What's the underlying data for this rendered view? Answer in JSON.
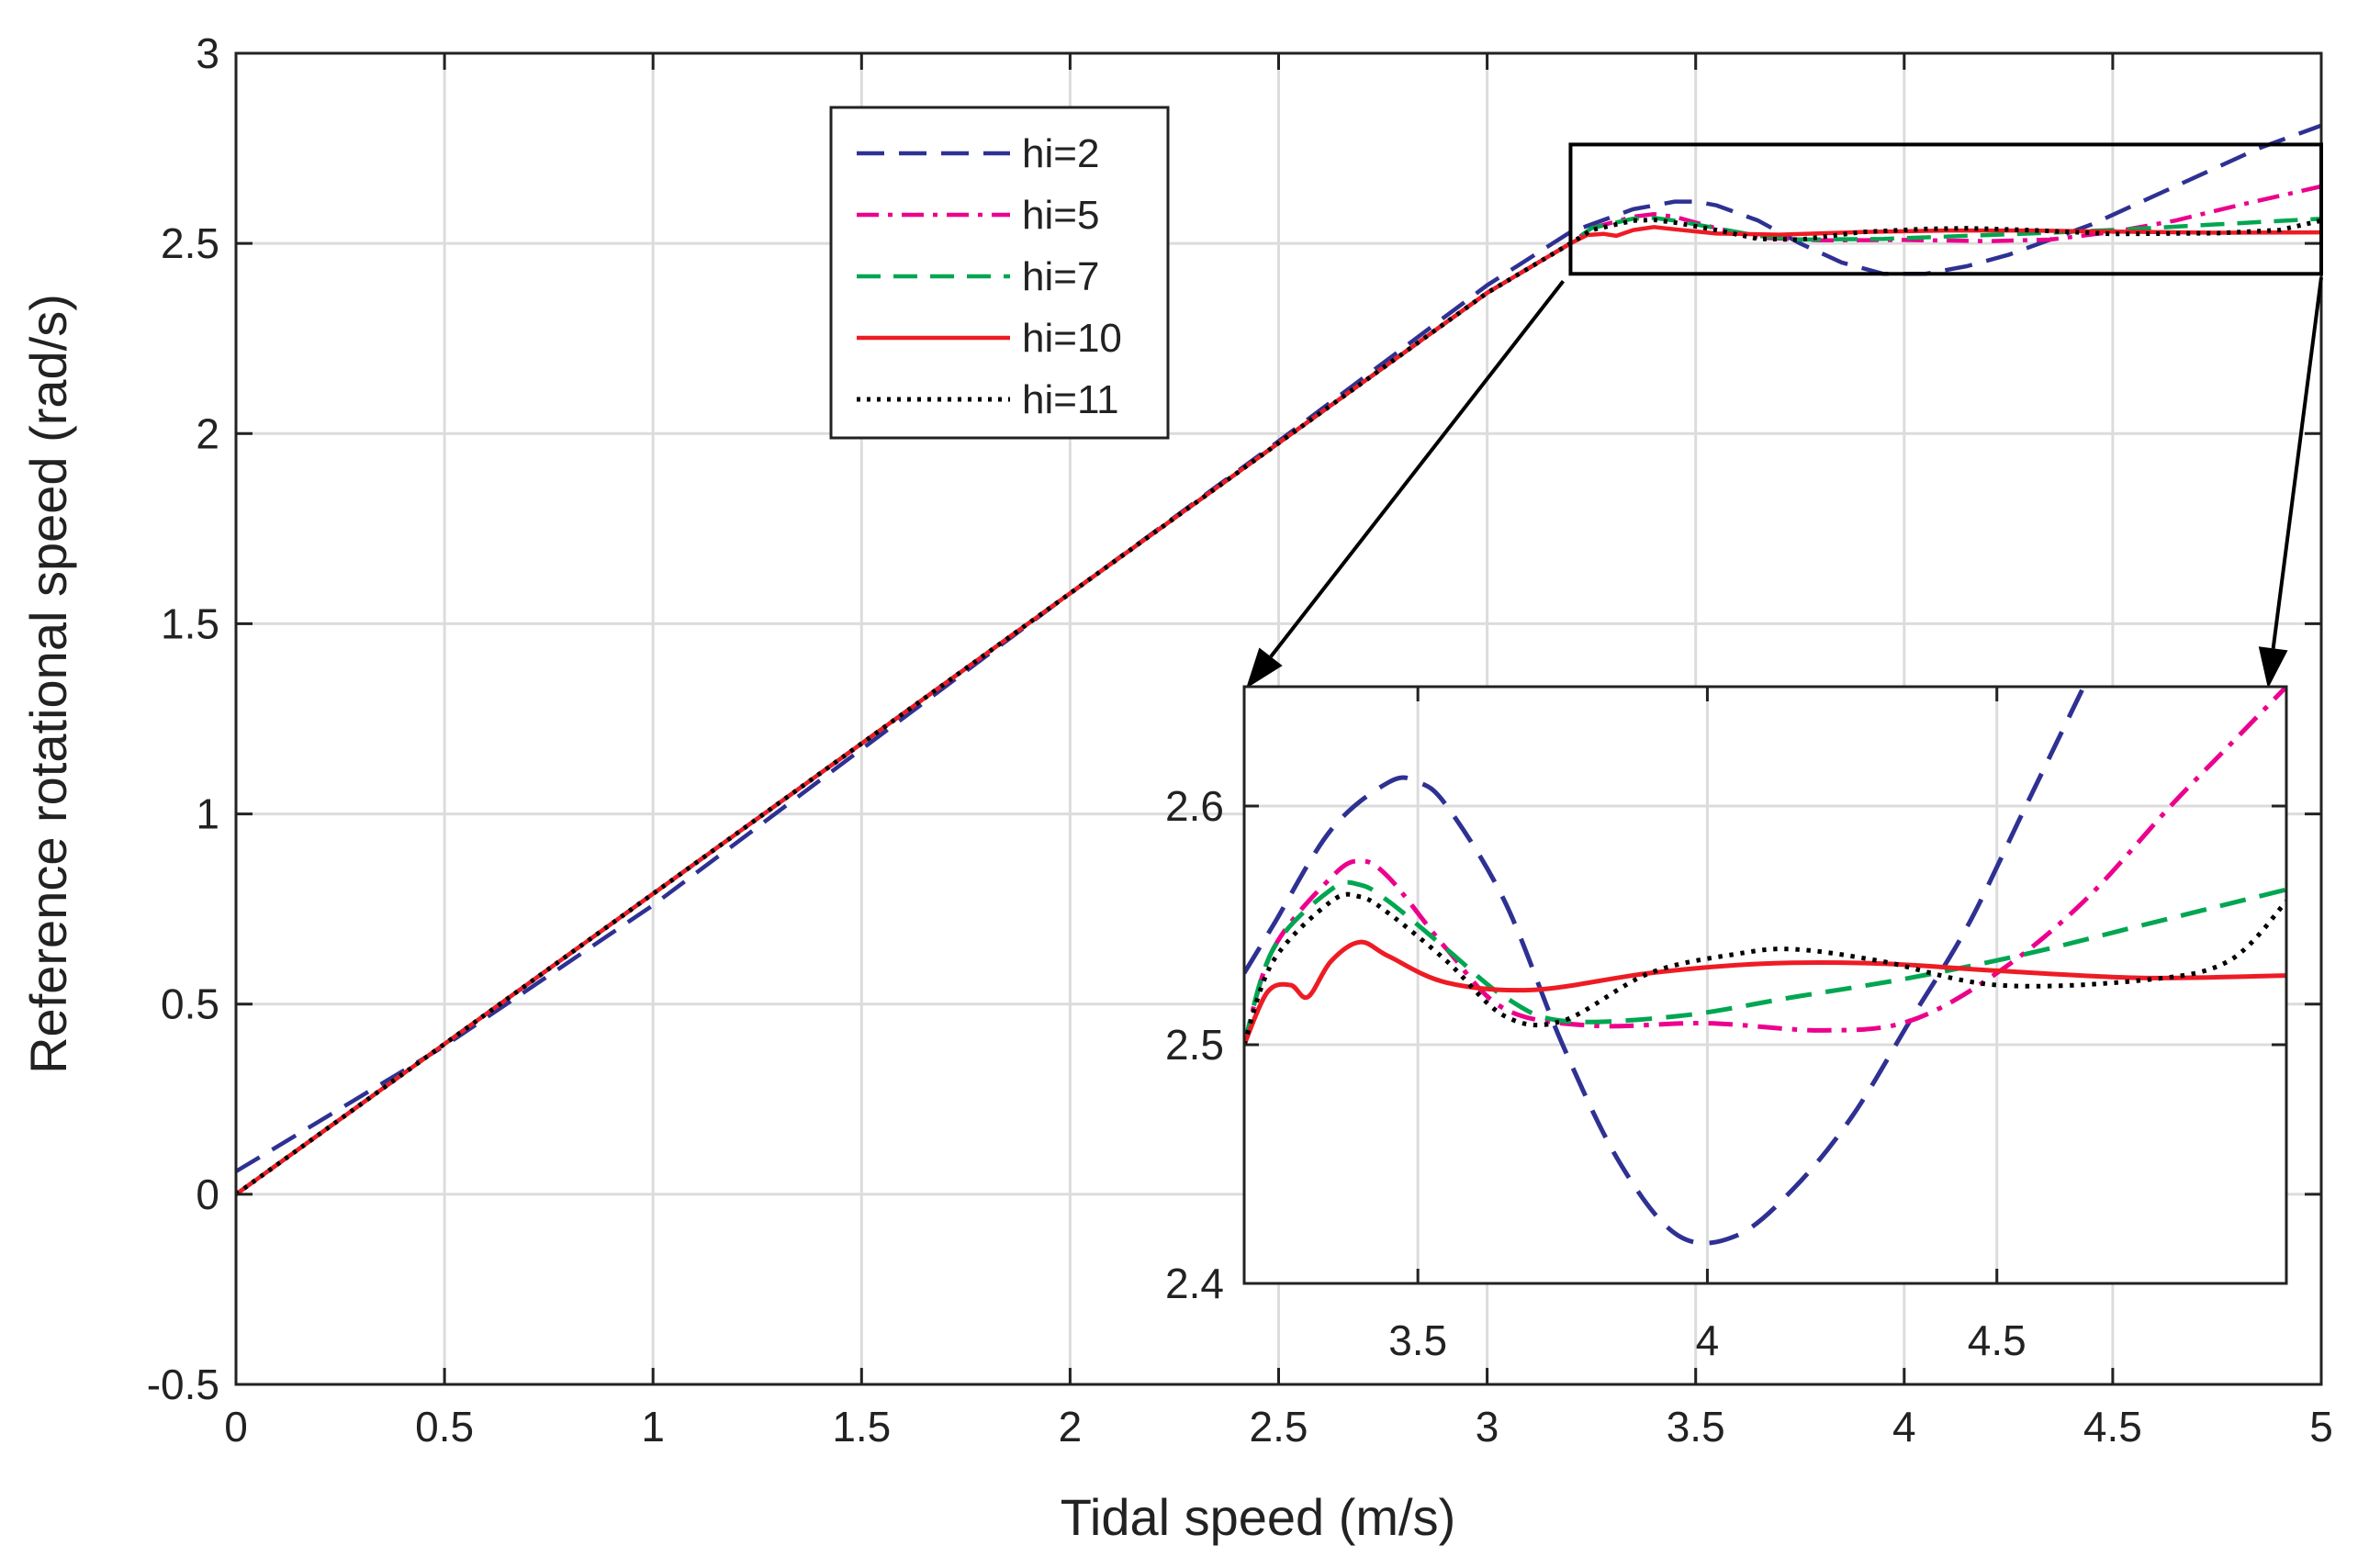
{
  "chart_data": {
    "type": "line",
    "title": "",
    "xlabel": "Tidal speed (m/s)",
    "ylabel": "Reference rotational speed (rad/s)",
    "xlim": [
      0,
      5
    ],
    "ylim": [
      -0.5,
      3
    ],
    "xticks": [
      0,
      0.5,
      1,
      1.5,
      2,
      2.5,
      3,
      3.5,
      4,
      4.5,
      5
    ],
    "xtick_labels": [
      "0",
      "0.5",
      "1",
      "1.5",
      "2",
      "2.5",
      "3",
      "3.5",
      "4",
      "4.5",
      "5"
    ],
    "yticks": [
      -0.5,
      0,
      0.5,
      1,
      1.5,
      2,
      2.5,
      3
    ],
    "ytick_labels": [
      "-0.5",
      "0",
      "0.5",
      "1",
      "1.5",
      "2",
      "2.5",
      "3"
    ],
    "grid": true,
    "legend_position": "top-center",
    "series": [
      {
        "name": "hi=2",
        "color": "#2e3192",
        "dash": "long-dash",
        "points": [
          [
            0,
            0.06
          ],
          [
            0.5,
            0.39
          ],
          [
            1,
            0.76
          ],
          [
            1.5,
            1.17
          ],
          [
            2,
            1.58
          ],
          [
            2.5,
            1.98
          ],
          [
            3.0,
            2.39
          ],
          [
            3.2,
            2.53
          ],
          [
            3.25,
            2.55
          ],
          [
            3.35,
            2.59
          ],
          [
            3.45,
            2.61
          ],
          [
            3.5,
            2.61
          ],
          [
            3.55,
            2.6
          ],
          [
            3.65,
            2.56
          ],
          [
            3.75,
            2.5
          ],
          [
            3.85,
            2.45
          ],
          [
            3.95,
            2.42
          ],
          [
            4.05,
            2.42
          ],
          [
            4.15,
            2.44
          ],
          [
            4.25,
            2.47
          ],
          [
            4.35,
            2.51
          ],
          [
            4.45,
            2.55
          ],
          [
            4.55,
            2.6
          ],
          [
            4.65,
            2.65
          ],
          [
            4.75,
            2.7
          ],
          [
            4.85,
            2.75
          ],
          [
            5.0,
            2.81
          ]
        ]
      },
      {
        "name": "hi=5",
        "color": "#ec008c",
        "dash": "dash-dot",
        "points": [
          [
            0,
            0.0
          ],
          [
            0.5,
            0.395
          ],
          [
            1,
            0.79
          ],
          [
            1.5,
            1.185
          ],
          [
            2,
            1.58
          ],
          [
            2.5,
            1.975
          ],
          [
            3.0,
            2.37
          ],
          [
            3.2,
            2.5
          ],
          [
            3.25,
            2.54
          ],
          [
            3.35,
            2.57
          ],
          [
            3.4,
            2.577
          ],
          [
            3.45,
            2.57
          ],
          [
            3.55,
            2.54
          ],
          [
            3.65,
            2.515
          ],
          [
            3.8,
            2.508
          ],
          [
            4.0,
            2.509
          ],
          [
            4.2,
            2.506
          ],
          [
            4.35,
            2.51
          ],
          [
            4.5,
            2.53
          ],
          [
            4.65,
            2.56
          ],
          [
            4.8,
            2.6
          ],
          [
            4.9,
            2.625
          ],
          [
            5.0,
            2.65
          ]
        ]
      },
      {
        "name": "hi=7",
        "color": "#00a651",
        "dash": "dash",
        "points": [
          [
            0,
            0.0
          ],
          [
            0.5,
            0.395
          ],
          [
            1,
            0.79
          ],
          [
            1.5,
            1.185
          ],
          [
            2,
            1.58
          ],
          [
            2.5,
            1.975
          ],
          [
            3.0,
            2.37
          ],
          [
            3.2,
            2.5
          ],
          [
            3.25,
            2.54
          ],
          [
            3.35,
            2.565
          ],
          [
            3.4,
            2.567
          ],
          [
            3.45,
            2.56
          ],
          [
            3.55,
            2.54
          ],
          [
            3.65,
            2.52
          ],
          [
            3.75,
            2.51
          ],
          [
            3.95,
            2.512
          ],
          [
            4.15,
            2.52
          ],
          [
            4.35,
            2.528
          ],
          [
            4.55,
            2.538
          ],
          [
            4.75,
            2.55
          ],
          [
            5.0,
            2.565
          ]
        ]
      },
      {
        "name": "hi=10",
        "color": "#ed1c24",
        "dash": "solid",
        "points": [
          [
            0,
            0.0
          ],
          [
            0.5,
            0.395
          ],
          [
            1,
            0.79
          ],
          [
            1.5,
            1.185
          ],
          [
            2,
            1.58
          ],
          [
            2.5,
            1.975
          ],
          [
            3.0,
            2.37
          ],
          [
            3.2,
            2.5
          ],
          [
            3.24,
            2.522
          ],
          [
            3.28,
            2.525
          ],
          [
            3.31,
            2.52
          ],
          [
            3.35,
            2.535
          ],
          [
            3.4,
            2.543
          ],
          [
            3.45,
            2.537
          ],
          [
            3.55,
            2.526
          ],
          [
            3.7,
            2.523
          ],
          [
            3.9,
            2.53
          ],
          [
            4.1,
            2.534
          ],
          [
            4.3,
            2.534
          ],
          [
            4.5,
            2.531
          ],
          [
            4.75,
            2.528
          ],
          [
            5.0,
            2.529
          ]
        ]
      },
      {
        "name": "hi=11",
        "color": "#000000",
        "dash": "dot",
        "points": [
          [
            0,
            0.0
          ],
          [
            0.5,
            0.395
          ],
          [
            1,
            0.79
          ],
          [
            1.5,
            1.185
          ],
          [
            2,
            1.58
          ],
          [
            2.5,
            1.975
          ],
          [
            3.0,
            2.37
          ],
          [
            3.2,
            2.5
          ],
          [
            3.25,
            2.535
          ],
          [
            3.35,
            2.56
          ],
          [
            3.4,
            2.562
          ],
          [
            3.45,
            2.555
          ],
          [
            3.55,
            2.535
          ],
          [
            3.65,
            2.512
          ],
          [
            3.75,
            2.51
          ],
          [
            3.9,
            2.53
          ],
          [
            4.05,
            2.538
          ],
          [
            4.15,
            2.54
          ],
          [
            4.3,
            2.535
          ],
          [
            4.5,
            2.525
          ],
          [
            4.75,
            2.527
          ],
          [
            4.9,
            2.535
          ],
          [
            5.0,
            2.56
          ]
        ]
      }
    ],
    "inset": {
      "xlim": [
        3.2,
        5.0
      ],
      "ylim": [
        2.4,
        2.65
      ],
      "xticks": [
        3.5,
        4,
        4.5
      ],
      "xtick_labels": [
        "3.5",
        "4",
        "4.5"
      ],
      "yticks": [
        2.4,
        2.5,
        2.6
      ],
      "ytick_labels": [
        "2.4",
        "2.5",
        "2.6"
      ],
      "source_region": {
        "xlim": [
          3.2,
          5.0
        ],
        "ylim": [
          2.42,
          2.76
        ]
      }
    }
  }
}
